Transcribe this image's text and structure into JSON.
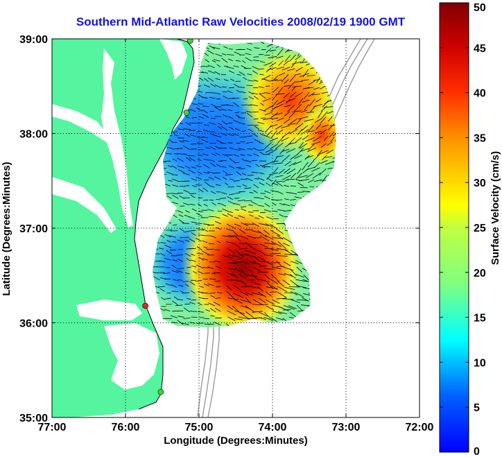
{
  "title": "Southern Mid-Atlantic Raw Velocities 2008/02/19 1900 GMT",
  "xlabel": "Longitude (Degrees:Minutes)",
  "ylabel": "Latitude (Degrees:Minutes)",
  "colorbar_label": "Surface Velocity (cm/s)",
  "x_ticks": [
    "77:00",
    "76:00",
    "75:00",
    "74:00",
    "73:00",
    "72:00"
  ],
  "y_ticks": [
    "39:00",
    "38:00",
    "37:00",
    "36:00",
    "35:00"
  ],
  "colorbar_ticks": [
    "0",
    "5",
    "10",
    "15",
    "20",
    "25",
    "30",
    "35",
    "40",
    "45",
    "50"
  ],
  "colors": {
    "land": "#55f5a0",
    "title": "#1212e6",
    "station_active": "#33dd33",
    "station_alert": "#ee2222"
  },
  "stations": [
    {
      "status": "active",
      "lon": -75.12,
      "lat": 38.98
    },
    {
      "status": "active",
      "lon": -75.17,
      "lat": 38.22
    },
    {
      "status": "alert",
      "lon": -75.73,
      "lat": 36.18
    },
    {
      "status": "active",
      "lon": -75.52,
      "lat": 35.27
    }
  ],
  "map_extent": {
    "lon": [
      -77,
      -72
    ],
    "lat": [
      35,
      39
    ]
  },
  "colorbar_range": [
    0,
    50
  ]
}
